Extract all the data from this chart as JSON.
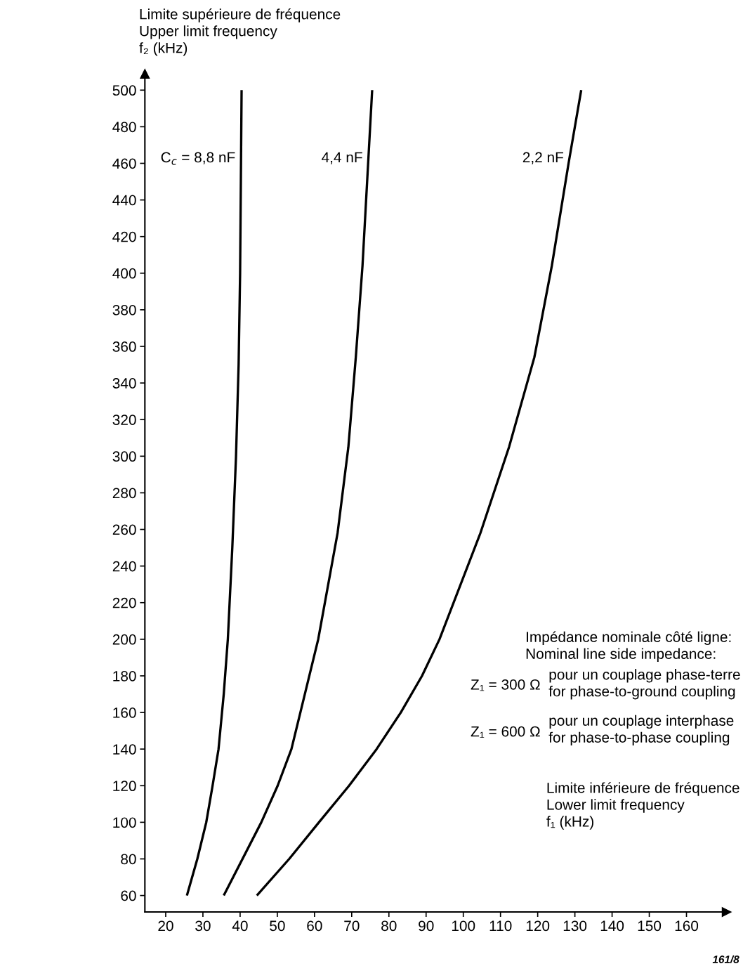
{
  "chart_data": {
    "type": "line",
    "ylabel": "Limite supérieure de fréquence\nUpper limit frequency\nf₂ (kHz)",
    "xlabel": "Limite inférieure de fréquence\nLower limit frequency\nf₁ (kHz)",
    "xlim": [
      14.4,
      170.8
    ],
    "ylim": [
      51.0,
      508.9
    ],
    "xticks": [
      20,
      30,
      40,
      50,
      60,
      70,
      80,
      90,
      100,
      110,
      120,
      130,
      140,
      150,
      160
    ],
    "yticks": [
      60,
      80,
      100,
      120,
      140,
      160,
      180,
      200,
      220,
      240,
      260,
      280,
      300,
      320,
      340,
      360,
      380,
      400,
      420,
      440,
      460,
      480,
      500
    ],
    "grid": false,
    "legend": false,
    "marker": "none",
    "line_style": "solid",
    "series": [
      {
        "name": "C$_{c}$ = 8,8 nF",
        "color": "#000000",
        "x": [
          25.7,
          28.5,
          30.9,
          32.6,
          34.2,
          35.6,
          36.7,
          37.9,
          38.9,
          39.6,
          40.0,
          40.4
        ],
        "values": [
          60,
          80,
          100,
          120,
          140,
          170,
          200,
          250,
          300,
          350,
          400,
          500
        ]
      },
      {
        "name": "4,4 nF",
        "color": "#000000",
        "x": [
          35.6,
          45.7,
          50.1,
          53.8,
          56.2,
          61.0,
          66.2,
          69.1,
          71.1,
          72.9,
          75.5
        ],
        "values": [
          60,
          100,
          120,
          140,
          160,
          200,
          258,
          305,
          354,
          404,
          500
        ]
      },
      {
        "name": "2,2 nF",
        "color": "#000000",
        "x": [
          44.5,
          53.2,
          61.2,
          69.3,
          76.7,
          83.2,
          88.9,
          93.6,
          104.6,
          112.3,
          119.1,
          123.8,
          128.3,
          131.7
        ],
        "values": [
          60,
          80,
          100,
          120,
          140,
          160,
          180,
          200,
          258,
          305,
          354,
          404,
          460,
          500
        ]
      }
    ],
    "annotations": [
      "Impédance nominale côté ligne:\nNominal line side impedance:",
      "Z₁ = 300 Ω",
      "pour un couplage phase-terre\nfor phase-to-ground coupling",
      "Z₁ = 600 Ω",
      "pour un couplage interphase\nfor phase-to-phase coupling",
      "161/8"
    ]
  }
}
